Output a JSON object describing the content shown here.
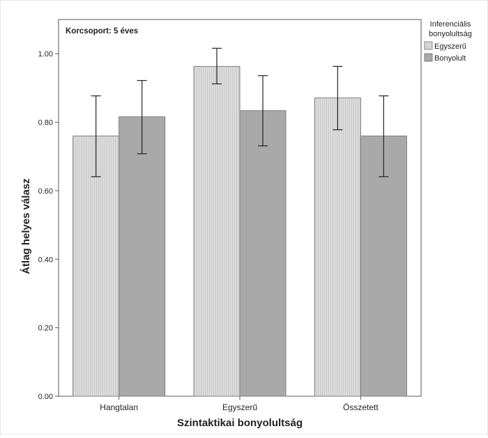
{
  "chart_data": {
    "type": "bar",
    "annotation": "Korcsoport: 5 éves",
    "xlabel": "Szintaktikai bonyolultság",
    "ylabel": "Átlag helyes válasz",
    "categories": [
      "Hangtalan",
      "Egyszerű",
      "Összetett"
    ],
    "ylim": [
      0,
      1.1
    ],
    "yticks": [
      "0.00",
      "0.20",
      "0.40",
      "0.60",
      "0.80",
      "1.00"
    ],
    "legend": {
      "title_lines": [
        "Inferenciális",
        "bonyolultság"
      ],
      "position": "right"
    },
    "series": [
      {
        "name": "Egyszerű",
        "color": "#d9d9d9",
        "values": [
          0.76,
          0.963,
          0.871
        ],
        "err_low": [
          0.641,
          0.912,
          0.778
        ],
        "err_high": [
          0.877,
          1.016,
          0.963
        ]
      },
      {
        "name": "Bonyolult",
        "color": "#a9a9a9",
        "values": [
          0.816,
          0.834,
          0.76
        ],
        "err_low": [
          0.708,
          0.731,
          0.641
        ],
        "err_high": [
          0.922,
          0.936,
          0.877
        ]
      }
    ],
    "grid": false
  }
}
